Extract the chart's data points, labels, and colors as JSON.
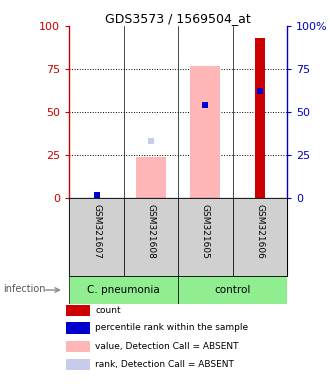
{
  "title": "GDS3573 / 1569504_at",
  "samples": [
    "GSM321607",
    "GSM321608",
    "GSM321605",
    "GSM321606"
  ],
  "ylim": [
    0,
    100
  ],
  "yticks": [
    0,
    25,
    50,
    75,
    100
  ],
  "left_axis_color": "#cc0000",
  "right_axis_color": "#0000cc",
  "count_values": [
    0,
    0,
    0,
    93
  ],
  "percentile_rank_values": [
    2,
    0,
    54,
    62
  ],
  "absent_value_bars": [
    0,
    24,
    77,
    0
  ],
  "absent_rank_markers": [
    2,
    33,
    0,
    0
  ],
  "legend_items": [
    {
      "color": "#cc0000",
      "label": "count"
    },
    {
      "color": "#0000cc",
      "label": "percentile rank within the sample"
    },
    {
      "color": "#ffb6b6",
      "label": "value, Detection Call = ABSENT"
    },
    {
      "color": "#c8ccec",
      "label": "rank, Detection Call = ABSENT"
    }
  ],
  "infection_label": "infection",
  "group_info": [
    {
      "label": "C. pneumonia",
      "start": 0,
      "end": 2,
      "color": "#90EE90"
    },
    {
      "label": "control",
      "start": 2,
      "end": 4,
      "color": "#90EE90"
    }
  ],
  "sample_box_color": "#d0d0d0",
  "absent_bar_color": "#ffb6b6",
  "absent_rank_color": "#c8ccec",
  "rank_color": "#0000cc",
  "count_bar_color": "#cc0000"
}
